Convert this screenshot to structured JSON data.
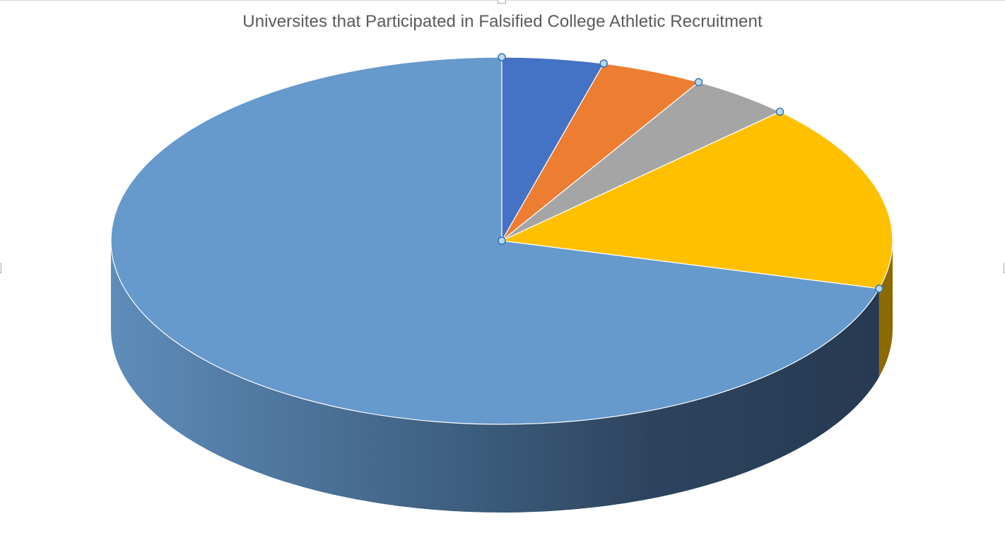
{
  "chart_data": {
    "type": "pie",
    "style": "3d",
    "title": "Universites that Participated in Falsified College Athletic Recruitment",
    "legend": "none",
    "data_labels": "none",
    "slices": [
      {
        "value": 4.2,
        "color": "#4472C4"
      },
      {
        "value": 4.2,
        "color": "#ED7D31"
      },
      {
        "value": 4.2,
        "color": "#A5A5A5"
      },
      {
        "value": 16.6,
        "color": "#FFC000"
      },
      {
        "value": 70.8,
        "color": "#5B9BD5"
      }
    ],
    "selected_series_handles": true
  }
}
